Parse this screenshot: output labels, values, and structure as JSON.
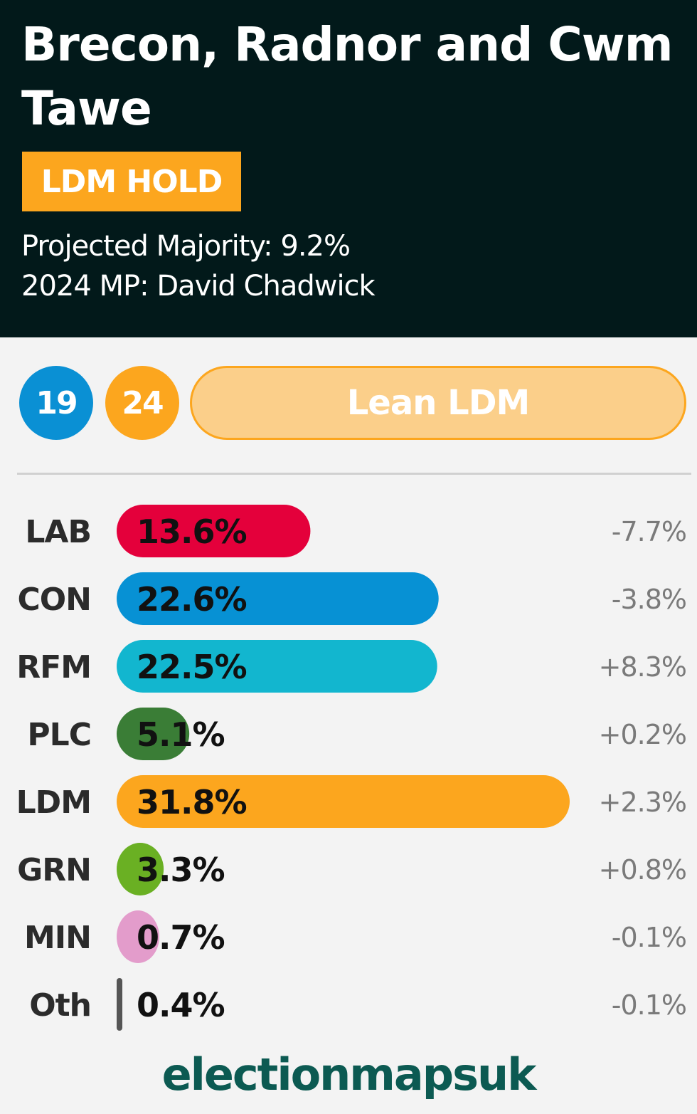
{
  "header": {
    "title": "Brecon, Radnor and Cwm Tawe",
    "status": "LDM HOLD",
    "projected_majority": "Projected Majority: 9.2%",
    "mp": "2024 MP: David Chadwick"
  },
  "ratings": {
    "badge_1": {
      "label": "19",
      "color": "#0a90d4"
    },
    "badge_2": {
      "label": "24",
      "color": "#fca61e"
    },
    "rating": {
      "label": "Lean LDM",
      "color": "#fbcf8a"
    }
  },
  "chart_data": {
    "type": "bar",
    "orientation": "horizontal",
    "categories": [
      "LAB",
      "CON",
      "RFM",
      "PLC",
      "LDM",
      "GRN",
      "MIN",
      "Oth"
    ],
    "values": [
      13.6,
      22.6,
      22.5,
      5.1,
      31.8,
      3.3,
      0.7,
      0.4
    ],
    "value_labels": [
      "13.6%",
      "22.6%",
      "22.5%",
      "5.1%",
      "31.8%",
      "3.3%",
      "0.7%",
      "0.4%"
    ],
    "changes": [
      "-7.7%",
      "-3.8%",
      "+8.3%",
      "+0.2%",
      "+2.3%",
      "+0.8%",
      "-0.1%",
      "-0.1%"
    ],
    "colors": [
      "#e4003b",
      "#0791d4",
      "#12b6cf",
      "#3a7d36",
      "#fca61e",
      "#6ab023",
      "#e39ccb",
      "#555555"
    ],
    "xlim": [
      0,
      31.8
    ],
    "grid": false,
    "legend": "none"
  },
  "footer": {
    "brand": "electionmapsuk"
  }
}
